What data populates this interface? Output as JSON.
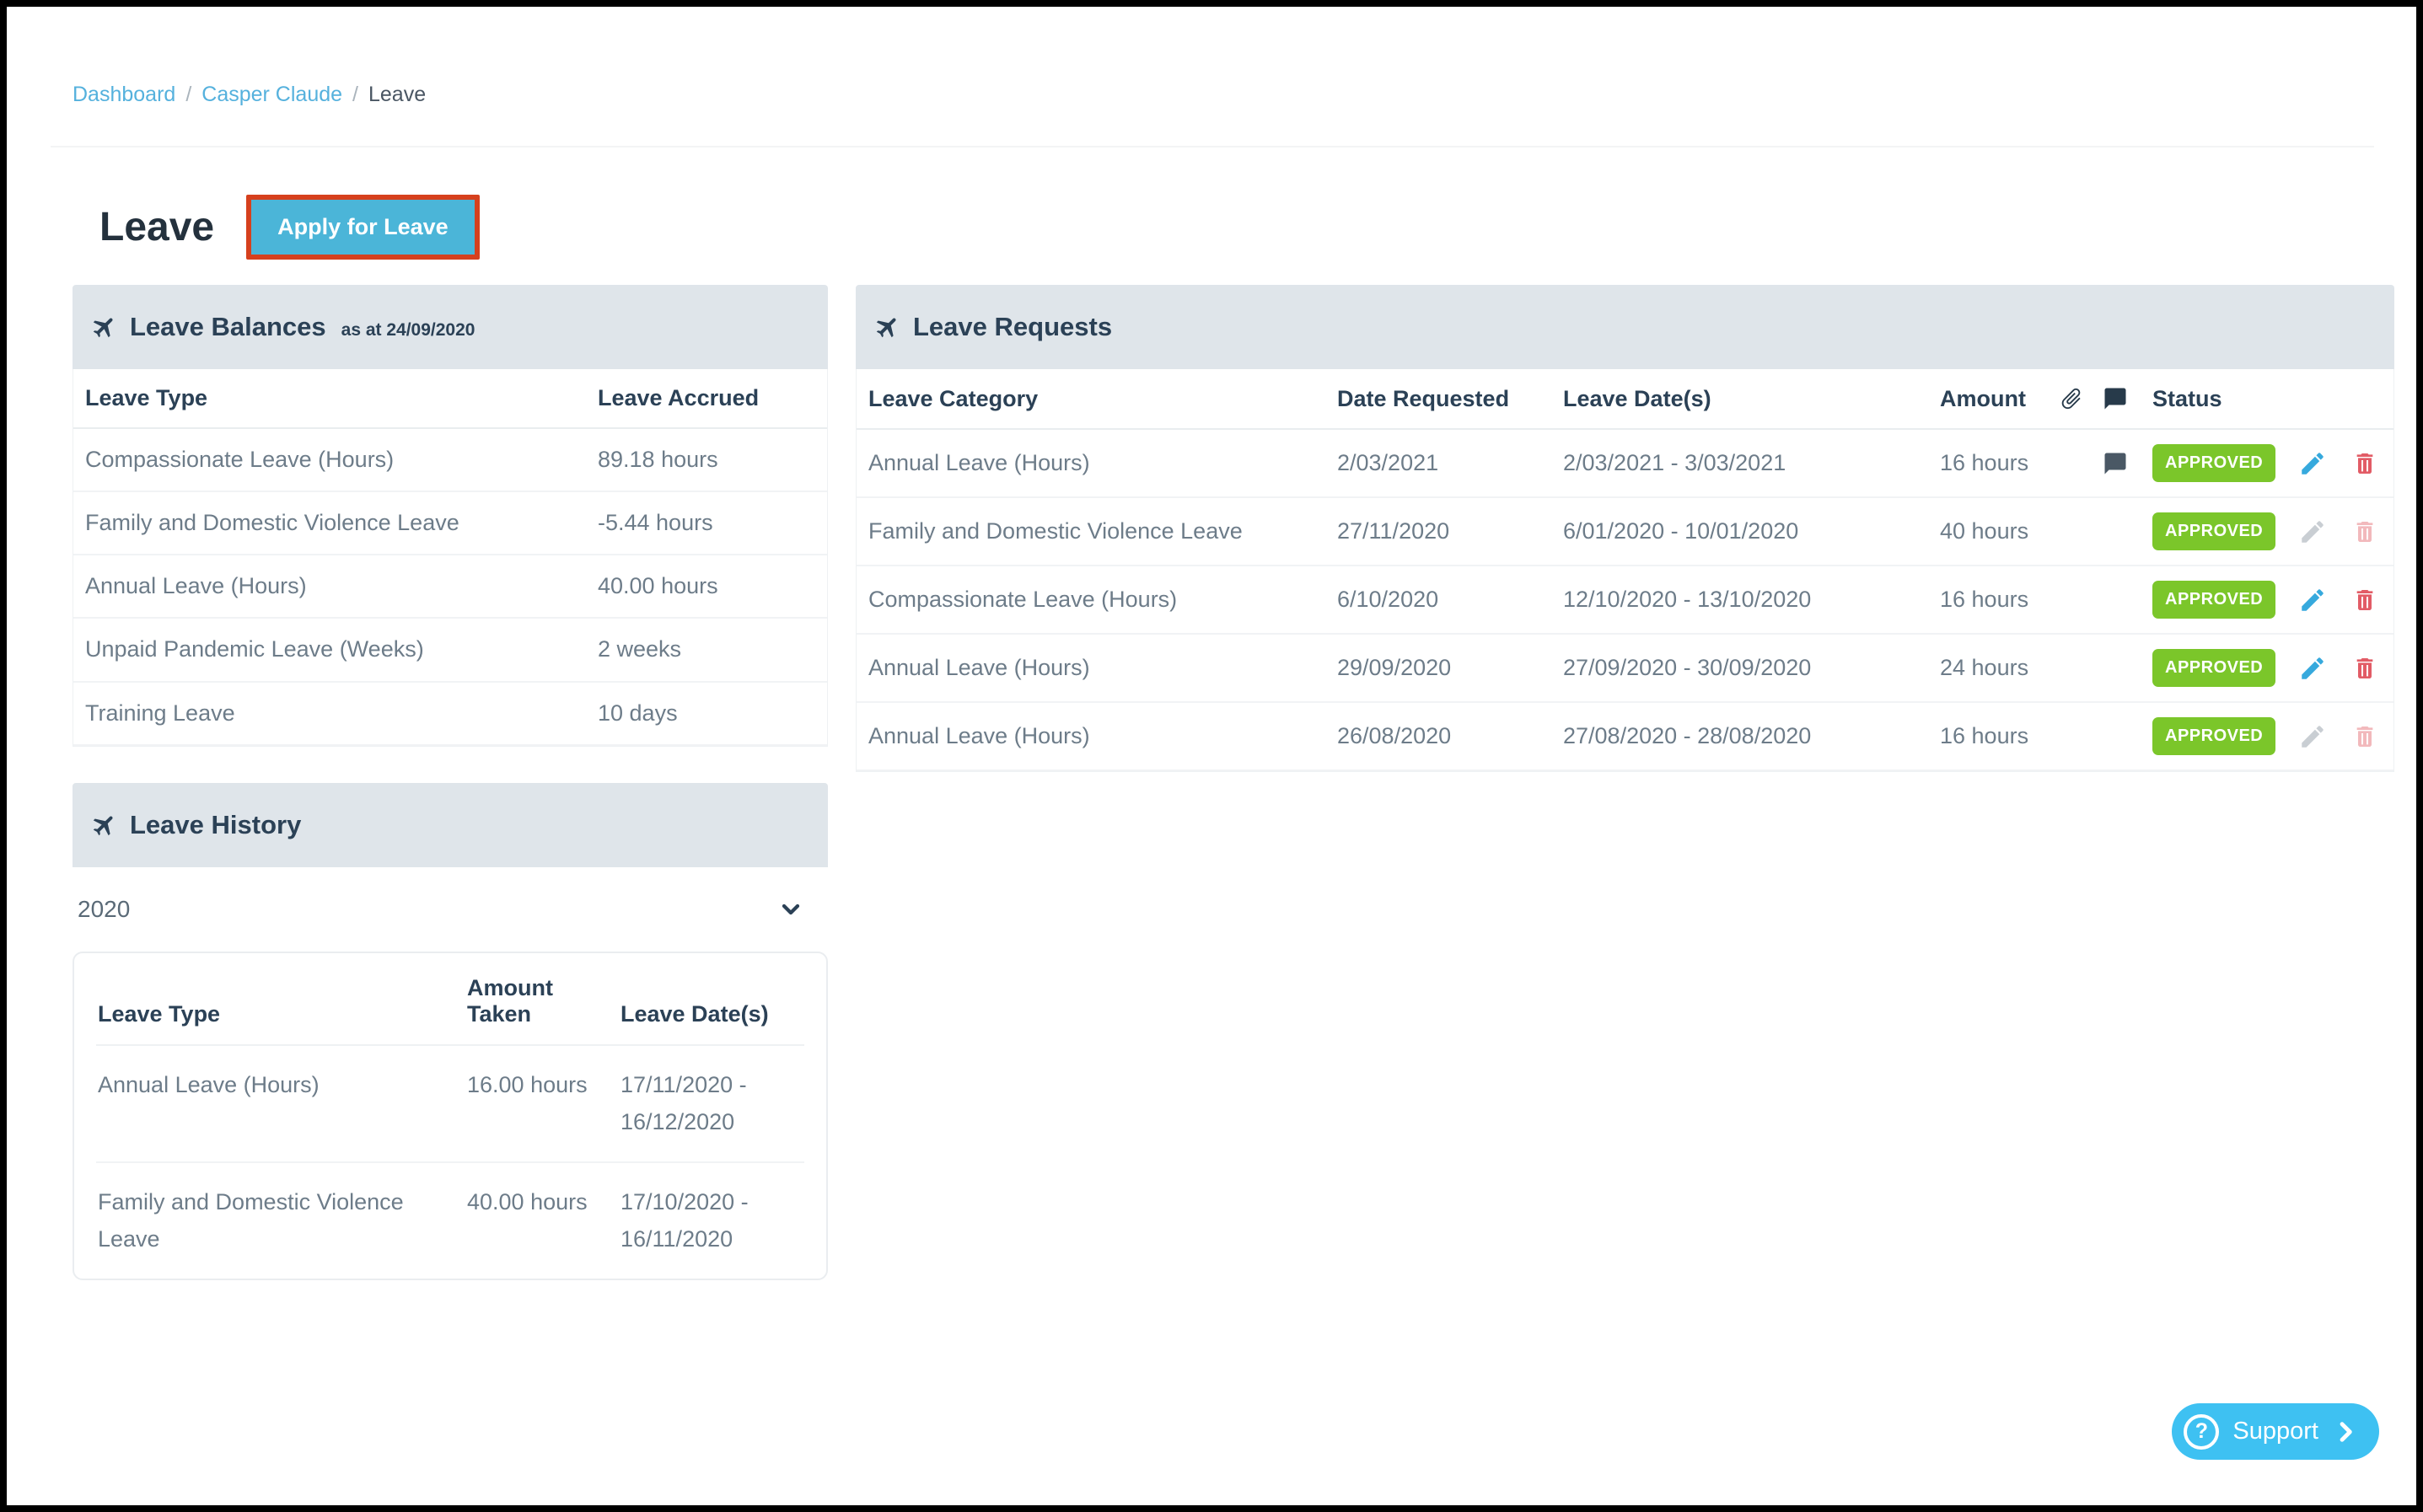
{
  "breadcrumb": {
    "separator": "/",
    "items": [
      {
        "label": "Dashboard"
      },
      {
        "label": "Casper Claude"
      },
      {
        "label": "Leave"
      }
    ]
  },
  "page": {
    "title": "Leave",
    "apply_button": "Apply for Leave"
  },
  "leave_balances": {
    "title": "Leave Balances",
    "subtitle": "as at 24/09/2020",
    "columns": [
      "Leave Type",
      "Leave Accrued"
    ],
    "rows": [
      {
        "type": "Compassionate Leave (Hours)",
        "accrued": "89.18 hours"
      },
      {
        "type": "Family and Domestic Violence Leave",
        "accrued": "-5.44 hours"
      },
      {
        "type": "Annual Leave (Hours)",
        "accrued": "40.00 hours"
      },
      {
        "type": "Unpaid Pandemic Leave (Weeks)",
        "accrued": "2 weeks"
      },
      {
        "type": "Training Leave",
        "accrued": "10 days"
      }
    ]
  },
  "leave_requests": {
    "title": "Leave Requests",
    "columns": [
      "Leave Category",
      "Date Requested",
      "Leave Date(s)",
      "Amount",
      "Status"
    ],
    "header_icons": [
      "paperclip-icon",
      "comment-icon"
    ],
    "rows": [
      {
        "category": "Annual Leave (Hours)",
        "date_requested": "2/03/2021",
        "dates": "2/03/2021 - 3/03/2021",
        "amount": "16 hours",
        "has_comment": true,
        "status": "APPROVED",
        "actions_enabled": true
      },
      {
        "category": "Family and Domestic Violence Leave",
        "date_requested": "27/11/2020",
        "dates": "6/01/2020 - 10/01/2020",
        "amount": "40 hours",
        "has_comment": false,
        "status": "APPROVED",
        "actions_enabled": false
      },
      {
        "category": "Compassionate Leave (Hours)",
        "date_requested": "6/10/2020",
        "dates": "12/10/2020 - 13/10/2020",
        "amount": "16 hours",
        "has_comment": false,
        "status": "APPROVED",
        "actions_enabled": true
      },
      {
        "category": "Annual Leave (Hours)",
        "date_requested": "29/09/2020",
        "dates": "27/09/2020 - 30/09/2020",
        "amount": "24 hours",
        "has_comment": false,
        "status": "APPROVED",
        "actions_enabled": true
      },
      {
        "category": "Annual Leave (Hours)",
        "date_requested": "26/08/2020",
        "dates": "27/08/2020 - 28/08/2020",
        "amount": "16 hours",
        "has_comment": false,
        "status": "APPROVED",
        "actions_enabled": false
      }
    ]
  },
  "leave_history": {
    "title": "Leave History",
    "year": "2020",
    "columns": [
      "Leave Type",
      "Amount Taken",
      "Leave Date(s)"
    ],
    "rows": [
      {
        "type": "Annual Leave (Hours)",
        "amount": "16.00 hours",
        "dates": "17/11/2020 - 16/12/2020"
      },
      {
        "type": "Family and Domestic Violence Leave",
        "amount": "40.00 hours",
        "dates": "17/10/2020 - 16/11/2020"
      }
    ]
  },
  "support": {
    "label": "Support"
  },
  "colors": {
    "accent_blue": "#4bb5d8",
    "breadcrumb_link": "#55b1dd",
    "annotation_red": "#d6401d",
    "approved_green": "#7bc62a",
    "edit_blue": "#36a9dd",
    "delete_red": "#e25c66",
    "disabled_gray": "#c9ced3",
    "disabled_pink": "#f2b9bc",
    "header_bg": "#dfe5ea",
    "navy_text": "#2b4156",
    "body_text": "#6d7c89",
    "support_blue": "#3ec1f2"
  }
}
